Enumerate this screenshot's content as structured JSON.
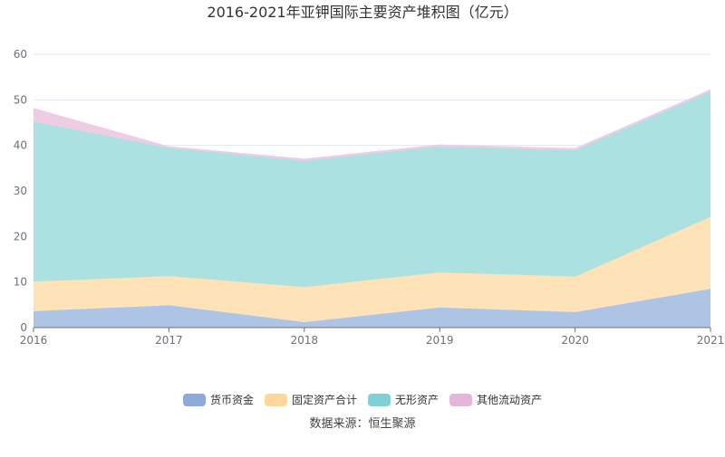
{
  "chart_data": {
    "type": "area",
    "stacked": true,
    "title": "2016-2021年亚钾国际主要资产堆积图（亿元）",
    "categories": [
      "2016",
      "2017",
      "2018",
      "2019",
      "2020",
      "2021"
    ],
    "series": [
      {
        "name": "货币资金",
        "values": [
          3.6,
          4.9,
          1.2,
          4.4,
          3.4,
          8.5
        ],
        "color": "#8eaadb",
        "fill": "#aec4e5"
      },
      {
        "name": "固定资产合计",
        "values": [
          6.5,
          6.4,
          7.7,
          7.7,
          7.8,
          15.8
        ],
        "color": "#fdd89a",
        "fill": "#fee3b9"
      },
      {
        "name": "无形资产",
        "values": [
          35.1,
          28.1,
          27.7,
          27.6,
          27.7,
          27.5
        ],
        "color": "#7fd1d4",
        "fill": "#ace1e2"
      },
      {
        "name": "其他流动资产",
        "values": [
          2.9,
          0.3,
          0.4,
          0.4,
          0.4,
          0.4
        ],
        "color": "#e6b6da",
        "fill": "#edcce4"
      }
    ],
    "ylim": [
      0,
      60
    ],
    "yticks": [
      0,
      10,
      20,
      30,
      40,
      50,
      60
    ],
    "grid": true,
    "legend": "bottom",
    "source": "数据来源：恒生聚源"
  }
}
